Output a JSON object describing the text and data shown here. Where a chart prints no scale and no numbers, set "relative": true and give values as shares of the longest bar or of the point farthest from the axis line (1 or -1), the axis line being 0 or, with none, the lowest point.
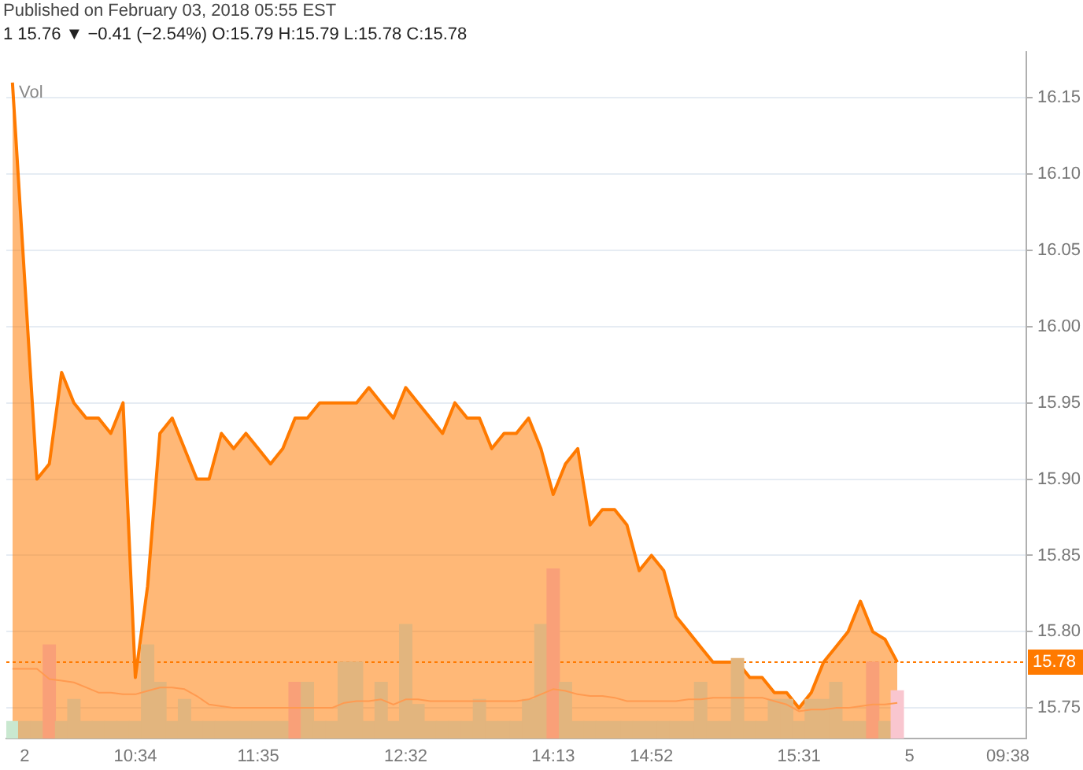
{
  "chart_data": [
    {
      "type": "area",
      "title": "1  15.76 ▼ −0.41 (−2.54%) O:15.79 H:15.79 L:15.78 C:15.78",
      "annotations": [
        "Published on February 03, 2018 05:55 EST"
      ],
      "categories": [
        null,
        "2",
        null,
        null,
        null,
        null,
        null,
        null,
        null,
        null,
        "10:34",
        null,
        null,
        null,
        null,
        null,
        null,
        null,
        null,
        null,
        "11:35",
        null,
        null,
        null,
        null,
        null,
        null,
        null,
        null,
        null,
        null,
        null,
        "12:32",
        null,
        null,
        null,
        null,
        null,
        null,
        null,
        null,
        null,
        null,
        null,
        "14:13",
        null,
        null,
        null,
        null,
        null,
        null,
        null,
        "14:52",
        null,
        null,
        null,
        null,
        null,
        null,
        null,
        null,
        null,
        null,
        null,
        "15:31",
        null,
        null,
        null,
        null,
        null,
        null,
        null,
        null,
        "5",
        null,
        null,
        null,
        null,
        null,
        null,
        null,
        "09:38",
        null
      ],
      "series": [
        {
          "color": "#ff7a00",
          "values": [
            16.16,
            16.03,
            15.9,
            15.91,
            15.97,
            15.95,
            15.94,
            15.94,
            15.93,
            15.95,
            15.77,
            15.83,
            15.93,
            15.94,
            15.92,
            15.9,
            15.9,
            15.93,
            15.92,
            15.93,
            15.92,
            15.91,
            15.92,
            15.94,
            15.94,
            15.95,
            15.95,
            15.95,
            15.95,
            15.96,
            15.95,
            15.94,
            15.96,
            15.95,
            15.94,
            15.93,
            15.95,
            15.94,
            15.94,
            15.92,
            15.93,
            15.93,
            15.94,
            15.92,
            15.89,
            15.91,
            15.92,
            15.87,
            15.88,
            15.88,
            15.87,
            15.84,
            15.85,
            15.84,
            15.81,
            15.8,
            15.79,
            15.78,
            15.78,
            15.78,
            15.77,
            15.77,
            15.76,
            15.76,
            15.75,
            15.76,
            15.78,
            15.79,
            15.8,
            15.82,
            15.8,
            15.795,
            15.78,
            null,
            null,
            null,
            null,
            null,
            null,
            null,
            null,
            null,
            null
          ]
        }
      ],
      "ylim": [
        15.73,
        16.18
      ],
      "yticks": [
        {
          "value": 15.75,
          "label": "15.75"
        },
        {
          "value": 15.8,
          "label": "15.80"
        },
        {
          "value": 15.85,
          "label": "15.85"
        },
        {
          "value": 15.9,
          "label": "15.90"
        },
        {
          "value": 15.95,
          "label": "15.95"
        },
        {
          "value": 16,
          "label": "16.00"
        },
        {
          "value": 16.05,
          "label": "16.05"
        },
        {
          "value": 16.1,
          "label": "16.10"
        },
        {
          "value": 16.15,
          "label": "16.15"
        }
      ],
      "ref_lines": [
        {
          "axis": "y",
          "value": 15.78,
          "label": "15.78",
          "color": "#ff7a00",
          "line_style": "dotted"
        }
      ],
      "grid": "y",
      "marker": "none",
      "legend": false
    },
    {
      "type": "bar",
      "title": "Vol",
      "relative": true,
      "categories": [
        null,
        null,
        null,
        null,
        null,
        null,
        null,
        null,
        null,
        null,
        null,
        null,
        null,
        null,
        null,
        null,
        null,
        null,
        null,
        null,
        null,
        null,
        null,
        null,
        null,
        null,
        null,
        null,
        null,
        null,
        null,
        null,
        null,
        null,
        null,
        null,
        null,
        null,
        null,
        null,
        null,
        null,
        null,
        null,
        null,
        null,
        null,
        null,
        null,
        null,
        null,
        null,
        null,
        null,
        null,
        null,
        null,
        null,
        null,
        null,
        null,
        null,
        null,
        null,
        null,
        null,
        null,
        null,
        null,
        null,
        null,
        null,
        null,
        null,
        null,
        null,
        null,
        null,
        null,
        null,
        null,
        null,
        null
      ],
      "series": [
        {
          "values": [
            0.1,
            0.1,
            0.1,
            0.55,
            0.1,
            0.23,
            0.1,
            0.1,
            0.1,
            0.1,
            0.1,
            0.55,
            0.33,
            0.1,
            0.23,
            0.1,
            0.1,
            0.1,
            0.1,
            0.1,
            0.1,
            0.1,
            0.1,
            0.33,
            0.33,
            0.1,
            0.1,
            0.45,
            0.45,
            0.1,
            0.33,
            0.1,
            0.67,
            0.2,
            0.1,
            0.1,
            0.1,
            0.1,
            0.23,
            0.1,
            0.1,
            0.1,
            0.23,
            0.67,
            1,
            0.33,
            0.1,
            0.1,
            0.1,
            0.1,
            0.1,
            0.1,
            0.1,
            0.1,
            0.1,
            0.1,
            0.33,
            0.1,
            0.1,
            0.47,
            0.1,
            0.1,
            0.23,
            0.23,
            0.1,
            0.23,
            0.23,
            0.33,
            0.1,
            0.1,
            0.45,
            0.1,
            0.28,
            null,
            null,
            null,
            null,
            null,
            null,
            null,
            null,
            null,
            null
          ],
          "colors": [
            "#c9e8d0",
            "#e2b57e",
            "#e2b57e",
            "#f9a078",
            "#e2b57e",
            "#e2b57e",
            "#e2b57e",
            "#e2b57e",
            "#e2b57e",
            "#e2b57e",
            "#e2b57e",
            "#e2b57e",
            "#e2b57e",
            "#e2b57e",
            "#e2b57e",
            "#e2b57e",
            "#e2b57e",
            "#e2b57e",
            "#e2b57e",
            "#e2b57e",
            "#e2b57e",
            "#e2b57e",
            "#e2b57e",
            "#f9a078",
            "#e2b57e",
            "#e2b57e",
            "#e2b57e",
            "#e2b57e",
            "#e2b57e",
            "#e2b57e",
            "#e2b57e",
            "#e2b57e",
            "#e2b57e",
            "#e2b57e",
            "#e2b57e",
            "#e2b57e",
            "#e2b57e",
            "#e2b57e",
            "#e2b57e",
            "#e2b57e",
            "#e2b57e",
            "#e2b57e",
            "#e2b57e",
            "#e2b57e",
            "#f9a078",
            "#e2b57e",
            "#e2b57e",
            "#e2b57e",
            "#e2b57e",
            "#e2b57e",
            "#e2b57e",
            "#e2b57e",
            "#e2b57e",
            "#e2b57e",
            "#e2b57e",
            "#e2b57e",
            "#e2b57e",
            "#e2b57e",
            "#e2b57e",
            "#e2b57e",
            "#e2b57e",
            "#e2b57e",
            "#e2b57e",
            "#e2b57e",
            "#e2b57e",
            "#e2b57e",
            "#e2b57e",
            "#e2b57e",
            "#e2b57e",
            "#e2b57e",
            "#f9a078",
            "#e2b57e",
            "#f9c6cf",
            "#e2b57e",
            "#e2b57e",
            "#e2b57e",
            "#e2b57e",
            "#e2b57e",
            "#e2b57e",
            "#e2b57e",
            "#e2b57e",
            "#e2b57e",
            "#e2b57e"
          ]
        },
        {
          "type": "line",
          "color": "#ff9a50",
          "values": [
            0.41,
            0.41,
            0.41,
            0.35,
            0.34,
            0.33,
            0.3,
            0.27,
            0.27,
            0.26,
            0.26,
            0.28,
            0.3,
            0.3,
            0.29,
            0.25,
            0.2,
            0.19,
            0.18,
            0.18,
            0.18,
            0.18,
            0.18,
            0.18,
            0.18,
            0.18,
            0.18,
            0.21,
            0.22,
            0.22,
            0.23,
            0.2,
            0.23,
            0.23,
            0.22,
            0.22,
            0.22,
            0.22,
            0.22,
            0.22,
            0.22,
            0.22,
            0.23,
            0.26,
            0.29,
            0.28,
            0.26,
            0.25,
            0.25,
            0.24,
            0.22,
            0.22,
            0.22,
            0.22,
            0.22,
            0.23,
            0.23,
            0.24,
            0.24,
            0.24,
            0.24,
            0.24,
            0.22,
            0.2,
            0.16,
            0.17,
            0.17,
            0.18,
            0.18,
            0.19,
            0.2,
            0.2,
            0.21,
            null,
            null,
            null,
            null,
            null,
            null,
            null,
            null,
            null,
            null
          ]
        }
      ],
      "marker": "none",
      "legend": false
    }
  ]
}
